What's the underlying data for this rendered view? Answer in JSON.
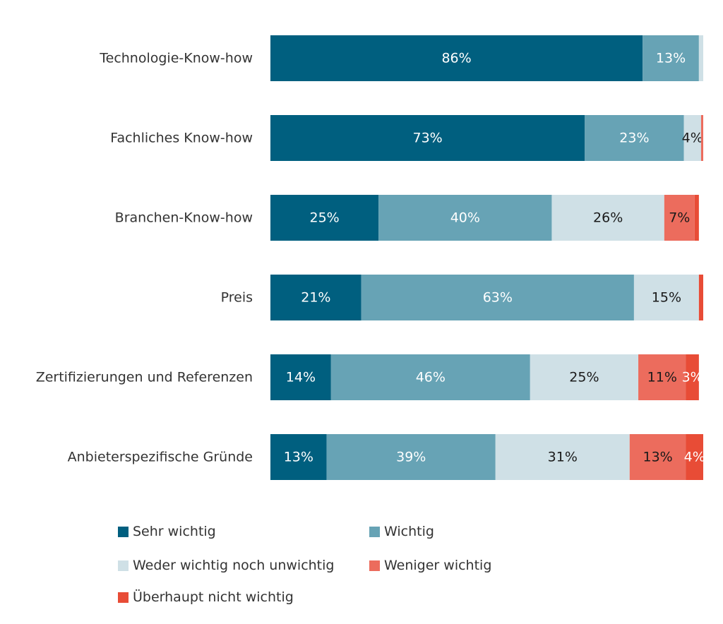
{
  "chart_data": {
    "type": "bar",
    "orientation": "horizontal",
    "stacked": true,
    "normalized_percent": true,
    "title": "",
    "xlabel": "",
    "ylabel": "",
    "xlim": [
      0,
      100
    ],
    "grid": false,
    "legend_position": "bottom",
    "categories": [
      "Technologie-Know-how",
      "Fachliches Know-how",
      "Branchen-Know-how",
      "Preis",
      "Zertifizierungen und Referenzen",
      "Anbieterspezifische Gründe"
    ],
    "series": [
      {
        "name": "Sehr wichtig",
        "color": "#005f7f",
        "values": [
          86,
          73,
          25,
          21,
          14,
          13
        ],
        "labels": [
          "86%",
          "73%",
          "25%",
          "21%",
          "14%",
          "13%"
        ],
        "label_color": "#ffffff"
      },
      {
        "name": "Wichtig",
        "color": "#67a3b5",
        "values": [
          13,
          23,
          40,
          63,
          46,
          39
        ],
        "labels": [
          "13%",
          "23%",
          "40%",
          "63%",
          "46%",
          "39%"
        ],
        "label_color": "#ffffff"
      },
      {
        "name": "Weder wichtig noch unwichtig",
        "color": "#cfe0e6",
        "values": [
          1,
          4,
          26,
          15,
          25,
          31
        ],
        "labels": [
          "",
          "4%",
          "26%",
          "15%",
          "25%",
          "31%"
        ],
        "label_color": "#1a1a1a"
      },
      {
        "name": "Weniger wichtig",
        "color": "#ec6c5d",
        "values": [
          0,
          0.5,
          7,
          0,
          11,
          13
        ],
        "labels": [
          "",
          "",
          "7%",
          "",
          "11%",
          "13%"
        ],
        "label_color": "#1a1a1a"
      },
      {
        "name": "Überhaupt nicht wichtig",
        "color": "#e84c36",
        "values": [
          0,
          0,
          1,
          1,
          3,
          4
        ],
        "labels": [
          "",
          "",
          "",
          "",
          "3%",
          "4%"
        ],
        "label_color": "#ffffff"
      }
    ]
  }
}
